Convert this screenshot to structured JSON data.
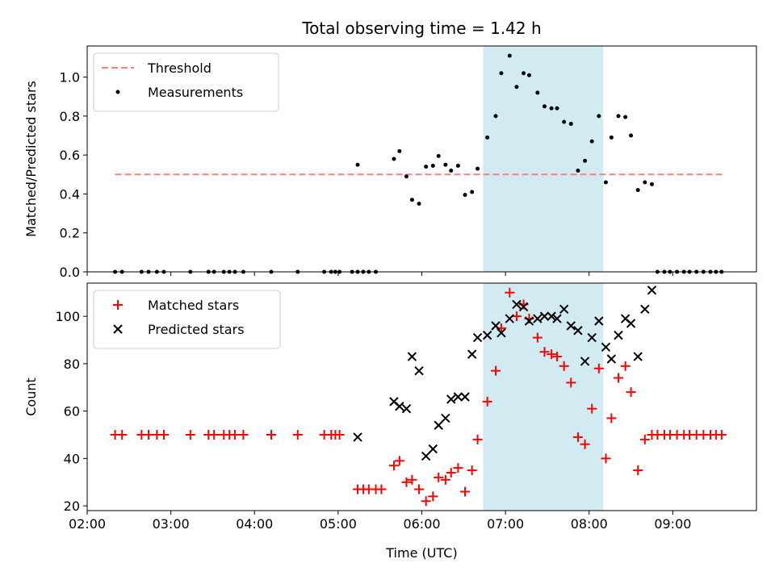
{
  "chart_data": [
    {
      "type": "scatter",
      "title": "Total observing time = 1.42 h",
      "ylabel": "Matched/Predicted stars",
      "xlabel": "",
      "xlim": [
        "02:00",
        "10:00"
      ],
      "ylim": [
        0,
        1.16
      ],
      "yticks": [
        "0.0",
        "0.2",
        "0.4",
        "0.6",
        "0.8",
        "1.0"
      ],
      "highlight_span": [
        "06:44",
        "08:10"
      ],
      "highlight_color": "#add8e6",
      "threshold": {
        "name": "Threshold",
        "value": 0.5,
        "x_range": [
          "02:20",
          "09:36"
        ],
        "color": "#ff8080"
      },
      "series": [
        {
          "name": "Measurements",
          "color": "#000000",
          "points": [
            [
              "02:20",
              0
            ],
            [
              "02:25",
              0
            ],
            [
              "02:39",
              0
            ],
            [
              "02:44",
              0
            ],
            [
              "02:50",
              0
            ],
            [
              "02:55",
              0
            ],
            [
              "03:14",
              0
            ],
            [
              "03:27",
              0
            ],
            [
              "03:31",
              0
            ],
            [
              "03:38",
              0
            ],
            [
              "03:42",
              0
            ],
            [
              "03:46",
              0
            ],
            [
              "03:52",
              0
            ],
            [
              "04:12",
              0
            ],
            [
              "04:31",
              0
            ],
            [
              "04:50",
              0
            ],
            [
              "04:55",
              0
            ],
            [
              "04:58",
              0
            ],
            [
              "05:01",
              0
            ],
            [
              "05:10",
              0
            ],
            [
              "05:14",
              0
            ],
            [
              "05:18",
              0
            ],
            [
              "05:22",
              0
            ],
            [
              "05:27",
              0
            ],
            [
              "05:14",
              0.55
            ],
            [
              "05:40",
              0.58
            ],
            [
              "05:44",
              0.62
            ],
            [
              "05:49",
              0.49
            ],
            [
              "05:53",
              0.37
            ],
            [
              "05:58",
              0.35
            ],
            [
              "06:03",
              0.54
            ],
            [
              "06:08",
              0.545
            ],
            [
              "06:12",
              0.595
            ],
            [
              "06:17",
              0.55
            ],
            [
              "06:21",
              0.52
            ],
            [
              "06:26",
              0.545
            ],
            [
              "06:31",
              0.395
            ],
            [
              "06:36",
              0.41
            ],
            [
              "06:40",
              0.53
            ],
            [
              "06:47",
              0.69
            ],
            [
              "06:53",
              0.8
            ],
            [
              "06:57",
              1.02
            ],
            [
              "07:03",
              1.11
            ],
            [
              "07:08",
              0.95
            ],
            [
              "07:13",
              1.02
            ],
            [
              "07:17",
              1.01
            ],
            [
              "07:23",
              0.92
            ],
            [
              "07:28",
              0.85
            ],
            [
              "07:33",
              0.84
            ],
            [
              "07:37",
              0.84
            ],
            [
              "07:42",
              0.77
            ],
            [
              "07:47",
              0.76
            ],
            [
              "07:52",
              0.52
            ],
            [
              "07:57",
              0.57
            ],
            [
              "08:02",
              0.67
            ],
            [
              "08:07",
              0.8
            ],
            [
              "08:12",
              0.46
            ],
            [
              "08:16",
              0.69
            ],
            [
              "08:21",
              0.8
            ],
            [
              "08:26",
              0.795
            ],
            [
              "08:30",
              0.7
            ],
            [
              "08:35",
              0.42
            ],
            [
              "08:40",
              0.46
            ],
            [
              "08:45",
              0.45
            ],
            [
              "08:49",
              0
            ],
            [
              "08:54",
              0
            ],
            [
              "08:58",
              0
            ],
            [
              "09:03",
              0
            ],
            [
              "09:08",
              0
            ],
            [
              "09:12",
              0
            ],
            [
              "09:17",
              0
            ],
            [
              "09:22",
              0
            ],
            [
              "09:27",
              0
            ],
            [
              "09:31",
              0
            ],
            [
              "09:35",
              0
            ]
          ]
        }
      ]
    },
    {
      "type": "scatter",
      "title": "",
      "xlabel": "Time (UTC)",
      "ylabel": "Count",
      "xlim": [
        "02:00",
        "10:00"
      ],
      "ylim": [
        18,
        114
      ],
      "xticks": [
        "02:00",
        "03:00",
        "04:00",
        "05:00",
        "06:00",
        "07:00",
        "08:00",
        "09:00"
      ],
      "yticks": [
        "20",
        "40",
        "60",
        "80",
        "100"
      ],
      "highlight_span": [
        "06:44",
        "08:10"
      ],
      "highlight_color": "#add8e6",
      "series": [
        {
          "name": "Matched stars",
          "color": "#ff0000",
          "marker": "plus",
          "points": [
            [
              "02:20",
              50
            ],
            [
              "02:25",
              50
            ],
            [
              "02:39",
              50
            ],
            [
              "02:44",
              50
            ],
            [
              "02:50",
              50
            ],
            [
              "02:55",
              50
            ],
            [
              "03:14",
              50
            ],
            [
              "03:27",
              50
            ],
            [
              "03:31",
              50
            ],
            [
              "03:38",
              50
            ],
            [
              "03:42",
              50
            ],
            [
              "03:46",
              50
            ],
            [
              "03:52",
              50
            ],
            [
              "04:12",
              50
            ],
            [
              "04:31",
              50
            ],
            [
              "04:50",
              50
            ],
            [
              "04:55",
              50
            ],
            [
              "04:58",
              50
            ],
            [
              "05:01",
              50
            ],
            [
              "05:14",
              27
            ],
            [
              "05:18",
              27
            ],
            [
              "05:22",
              27
            ],
            [
              "05:27",
              27
            ],
            [
              "05:31",
              27
            ],
            [
              "05:40",
              37
            ],
            [
              "05:44",
              39
            ],
            [
              "05:49",
              30
            ],
            [
              "05:53",
              31
            ],
            [
              "05:58",
              27
            ],
            [
              "06:03",
              22
            ],
            [
              "06:08",
              24
            ],
            [
              "06:12",
              32
            ],
            [
              "06:17",
              31
            ],
            [
              "06:21",
              34
            ],
            [
              "06:26",
              36
            ],
            [
              "06:31",
              26
            ],
            [
              "06:36",
              35
            ],
            [
              "06:40",
              48
            ],
            [
              "06:47",
              64
            ],
            [
              "06:53",
              77
            ],
            [
              "06:57",
              95
            ],
            [
              "07:03",
              110
            ],
            [
              "07:08",
              100
            ],
            [
              "07:13",
              105
            ],
            [
              "07:17",
              99
            ],
            [
              "07:23",
              91
            ],
            [
              "07:28",
              85
            ],
            [
              "07:33",
              84
            ],
            [
              "07:37",
              83
            ],
            [
              "07:42",
              79
            ],
            [
              "07:47",
              72
            ],
            [
              "07:52",
              49
            ],
            [
              "07:57",
              46
            ],
            [
              "08:02",
              61
            ],
            [
              "08:07",
              78
            ],
            [
              "08:12",
              40
            ],
            [
              "08:16",
              57
            ],
            [
              "08:21",
              74
            ],
            [
              "08:26",
              79
            ],
            [
              "08:30",
              68
            ],
            [
              "08:35",
              35
            ],
            [
              "08:40",
              48
            ],
            [
              "08:45",
              50
            ],
            [
              "08:49",
              50
            ],
            [
              "08:54",
              50
            ],
            [
              "08:58",
              50
            ],
            [
              "09:03",
              50
            ],
            [
              "09:08",
              50
            ],
            [
              "09:12",
              50
            ],
            [
              "09:17",
              50
            ],
            [
              "09:22",
              50
            ],
            [
              "09:27",
              50
            ],
            [
              "09:31",
              50
            ],
            [
              "09:35",
              50
            ]
          ]
        },
        {
          "name": "Predicted stars",
          "color": "#000000",
          "marker": "x",
          "points": [
            [
              "05:14",
              49
            ],
            [
              "05:40",
              64
            ],
            [
              "05:44",
              62
            ],
            [
              "05:49",
              61
            ],
            [
              "05:53",
              83
            ],
            [
              "05:58",
              77
            ],
            [
              "06:03",
              41
            ],
            [
              "06:08",
              44
            ],
            [
              "06:12",
              54
            ],
            [
              "06:17",
              57
            ],
            [
              "06:21",
              65
            ],
            [
              "06:26",
              66
            ],
            [
              "06:31",
              66
            ],
            [
              "06:36",
              84
            ],
            [
              "06:40",
              91
            ],
            [
              "06:47",
              92
            ],
            [
              "06:53",
              96
            ],
            [
              "06:57",
              93
            ],
            [
              "07:03",
              99
            ],
            [
              "07:08",
              105
            ],
            [
              "07:13",
              104
            ],
            [
              "07:17",
              98
            ],
            [
              "07:23",
              99
            ],
            [
              "07:28",
              100
            ],
            [
              "07:33",
              100
            ],
            [
              "07:37",
              99
            ],
            [
              "07:42",
              103
            ],
            [
              "07:47",
              96
            ],
            [
              "07:52",
              94
            ],
            [
              "07:57",
              81
            ],
            [
              "08:02",
              91
            ],
            [
              "08:07",
              98
            ],
            [
              "08:12",
              87
            ],
            [
              "08:16",
              82
            ],
            [
              "08:21",
              92
            ],
            [
              "08:26",
              99
            ],
            [
              "08:30",
              97
            ],
            [
              "08:35",
              83
            ],
            [
              "08:40",
              103
            ],
            [
              "08:45",
              111
            ]
          ]
        }
      ]
    }
  ]
}
